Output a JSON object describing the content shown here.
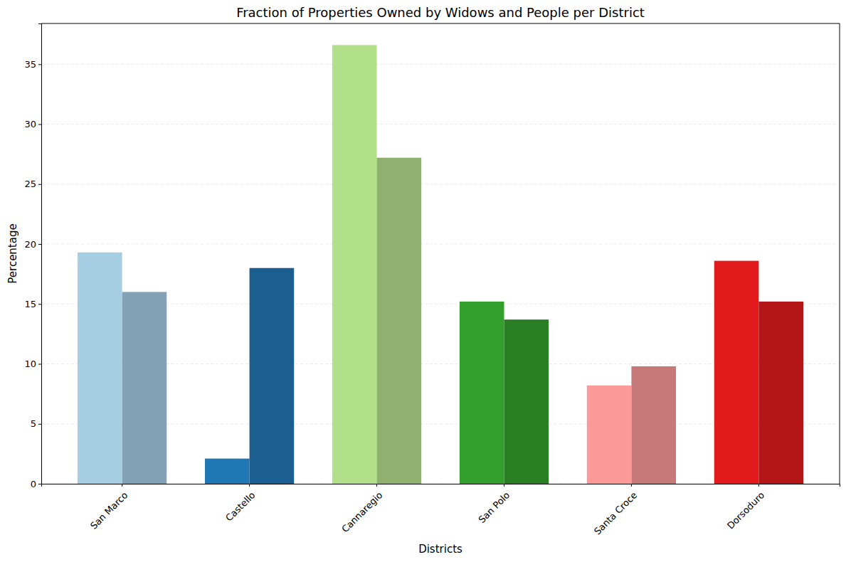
{
  "chart_data": {
    "type": "bar",
    "title": "Fraction of Properties Owned by Widows and People per District",
    "x_label": "Districts",
    "y_label": "Percentage",
    "categories": [
      "San Marco",
      "Castello",
      "Cannaregio",
      "San Polo",
      "Santa Croce",
      "Dorsoduro"
    ],
    "series": [
      {
        "colors": [
          "#a6cee3",
          "#1f78b4",
          "#b2df8a",
          "#33a02c",
          "#fb9a99",
          "#e31a1c"
        ],
        "values": [
          19.3,
          2.1,
          36.6,
          15.2,
          8.2,
          18.6
        ]
      },
      {
        "colors": [
          "#84a2b5",
          "#1a5f90",
          "#8fb06e",
          "#2a7f25",
          "#c7797a",
          "#b41618"
        ],
        "values": [
          16.0,
          18.0,
          27.2,
          13.7,
          9.8,
          15.2
        ]
      }
    ],
    "ylim": [
      0,
      38.4
    ],
    "yticks": [
      0,
      5,
      10,
      15,
      20,
      25,
      30,
      35
    ],
    "grid": true
  }
}
